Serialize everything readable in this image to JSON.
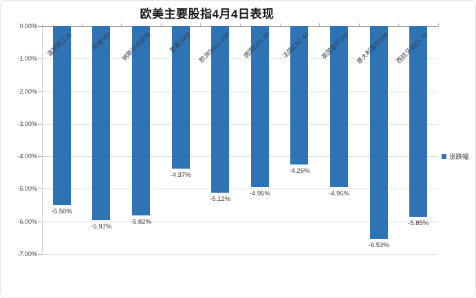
{
  "window": {
    "background": "#ffffff",
    "border_color": "#e2e2e2"
  },
  "chart_data": {
    "type": "bar",
    "title": "欧美主要股指4月4日表现",
    "categories": [
      "道琼斯工业",
      "标普500",
      "纳斯达克综合",
      "罗素2000",
      "欧洲Stoxx 600",
      "德国DAX 30",
      "法国CAC 40",
      "英国富时100",
      "意大利富时MIB",
      "西班牙IBEX 35"
    ],
    "series": [
      {
        "name": "涨跌幅",
        "color": "#2e74b5",
        "values": [
          -5.5,
          -5.97,
          -5.82,
          -4.37,
          -5.12,
          -4.95,
          -4.26,
          -4.95,
          -6.53,
          -5.85
        ]
      }
    ],
    "data_labels": [
      "-5.50%",
      "-5.97%",
      "-5.82%",
      "-4.37%",
      "-5.12%",
      "-4.95%",
      "-4.26%",
      "-4.95%",
      "-6.53%",
      "-5.85%"
    ],
    "y_axis": {
      "min": -7,
      "max": 0,
      "step": 1,
      "tick_labels": [
        "0.00%",
        "-1.00%",
        "-2.00%",
        "-3.00%",
        "-4.00%",
        "-5.00%",
        "-6.00%",
        "-7.00%"
      ]
    },
    "grid": true,
    "legend_position": "right",
    "colors": {
      "gridline": "#d9d9d9",
      "zero_line": "#a6a6a6",
      "axis": "#c9c9c9",
      "text": "#3f3f3f"
    }
  }
}
